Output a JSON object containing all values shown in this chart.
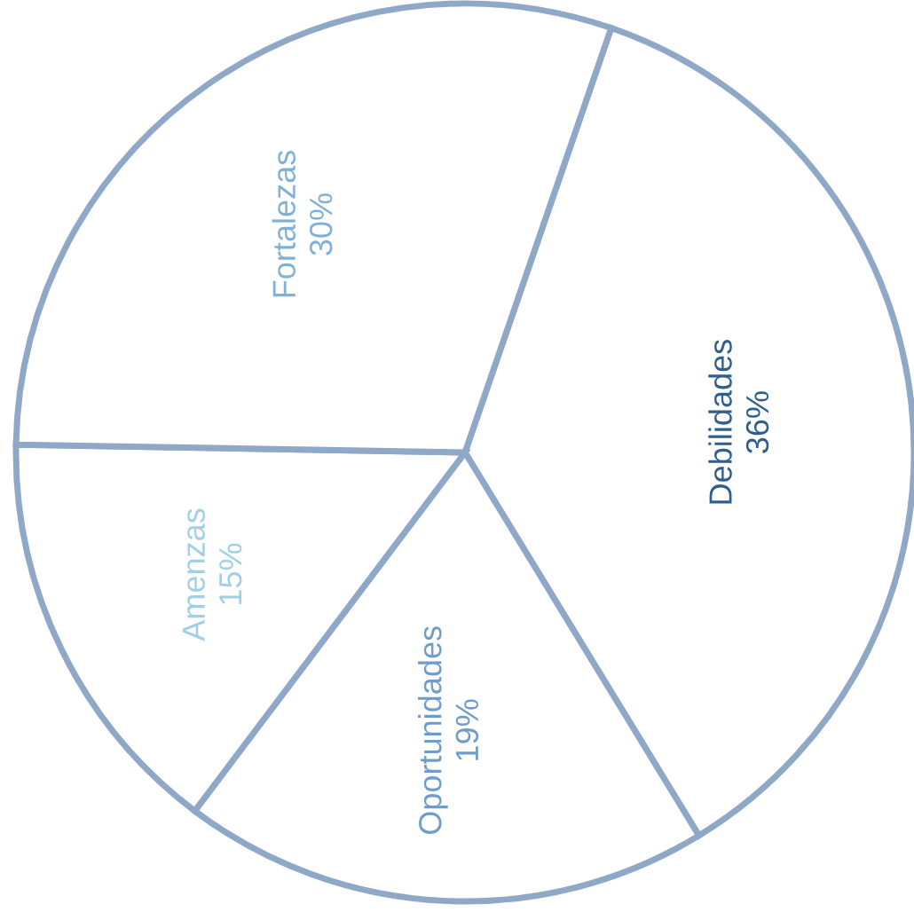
{
  "chart_data": {
    "type": "pie",
    "categories": [
      "Debilidades",
      "Oportunidades",
      "Amenzas",
      "Fortalezas"
    ],
    "values": [
      36,
      19,
      15,
      30
    ],
    "value_labels": [
      "36%",
      "19%",
      "15%",
      "30%"
    ],
    "colors": [
      "#ffffff",
      "#ffffff",
      "#ffffff",
      "#ffffff"
    ]
  }
}
